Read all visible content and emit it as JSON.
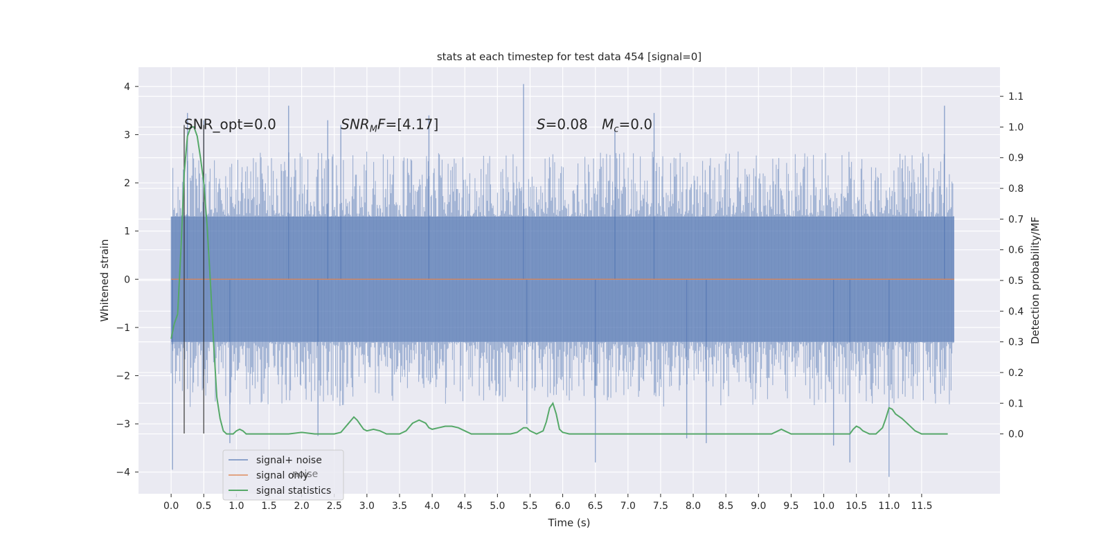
{
  "chart_data": {
    "type": "line",
    "title": "stats at each timestep for test data 454 [signal=0]",
    "xlabel": "Time (s)",
    "ylabel": "Whitened strain",
    "y2label": "Detection probability/MF",
    "xlim": [
      -0.5,
      12.7
    ],
    "ylim": [
      -4.45,
      4.4
    ],
    "y2lim": [
      -0.195,
      1.195
    ],
    "xticks": [
      "0.0",
      "0.5",
      "1.0",
      "1.5",
      "2.0",
      "2.5",
      "3.0",
      "3.5",
      "4.0",
      "4.5",
      "5.0",
      "5.5",
      "6.0",
      "6.5",
      "7.0",
      "7.5",
      "8.0",
      "8.5",
      "9.0",
      "9.5",
      "10.0",
      "10.5",
      "11.0",
      "11.5"
    ],
    "yticks": [
      "4",
      "3",
      "2",
      "1",
      "0",
      "−1",
      "−2",
      "−3",
      "−4"
    ],
    "y2ticks": [
      "1.1",
      "1.0",
      "0.9",
      "0.8",
      "0.7",
      "0.6",
      "0.5",
      "0.4",
      "0.3",
      "0.2",
      "0.1",
      "0.0"
    ],
    "grid": true,
    "legend_position": "lower-left",
    "background": "#eaeaf2",
    "colors": {
      "noise": "#4c72b0",
      "signal": "#dd8452",
      "stats": "#55a868",
      "vline": "#333333"
    },
    "series": [
      {
        "name": "signal+ noise",
        "x_range": [
          0.0,
          12.0
        ],
        "band_upper": 1.3,
        "band_lower": -1.3,
        "spikes": [
          {
            "x": 0.02,
            "y": -3.95
          },
          {
            "x": 0.25,
            "y": 3.45
          },
          {
            "x": 0.5,
            "y": 3.3
          },
          {
            "x": 0.9,
            "y": -3.4
          },
          {
            "x": 1.8,
            "y": 3.6
          },
          {
            "x": 2.25,
            "y": -3.25
          },
          {
            "x": 2.4,
            "y": 3.3
          },
          {
            "x": 2.6,
            "y": 3.2
          },
          {
            "x": 3.95,
            "y": 3.4
          },
          {
            "x": 5.4,
            "y": 4.05
          },
          {
            "x": 5.45,
            "y": -3.0
          },
          {
            "x": 6.5,
            "y": -3.8
          },
          {
            "x": 6.8,
            "y": 3.1
          },
          {
            "x": 7.4,
            "y": 3.45
          },
          {
            "x": 7.9,
            "y": -3.3
          },
          {
            "x": 8.2,
            "y": -3.4
          },
          {
            "x": 10.15,
            "y": -3.45
          },
          {
            "x": 10.4,
            "y": -3.8
          },
          {
            "x": 11.0,
            "y": -4.1
          },
          {
            "x": 11.85,
            "y": 3.6
          }
        ]
      },
      {
        "name": "signal only",
        "x": [
          0.0,
          12.0
        ],
        "y": [
          0.0,
          0.0
        ]
      },
      {
        "name": "signal statistics",
        "axis": "right",
        "x": [
          0.0,
          0.05,
          0.1,
          0.15,
          0.2,
          0.25,
          0.3,
          0.35,
          0.4,
          0.45,
          0.5,
          0.55,
          0.6,
          0.65,
          0.7,
          0.75,
          0.8,
          0.85,
          0.9,
          0.95,
          1.0,
          1.05,
          1.1,
          1.15,
          1.2,
          1.3,
          1.5,
          1.8,
          2.0,
          2.2,
          2.5,
          2.6,
          2.7,
          2.8,
          2.85,
          2.9,
          2.95,
          3.0,
          3.1,
          3.2,
          3.3,
          3.4,
          3.5,
          3.6,
          3.7,
          3.8,
          3.9,
          3.95,
          4.0,
          4.1,
          4.2,
          4.3,
          4.4,
          4.5,
          4.6,
          4.7,
          4.8,
          4.9,
          5.0,
          5.1,
          5.2,
          5.3,
          5.4,
          5.45,
          5.5,
          5.6,
          5.7,
          5.75,
          5.8,
          5.85,
          5.9,
          5.95,
          6.0,
          6.1,
          6.2,
          6.3,
          6.5,
          7.0,
          7.5,
          8.0,
          8.5,
          9.0,
          9.2,
          9.3,
          9.35,
          9.4,
          9.5,
          9.7,
          10.0,
          10.3,
          10.4,
          10.45,
          10.5,
          10.55,
          10.6,
          10.7,
          10.8,
          10.9,
          10.95,
          11.0,
          11.05,
          11.1,
          11.2,
          11.3,
          11.4,
          11.5,
          11.6,
          11.8,
          11.9
        ],
        "y": [
          0.31,
          0.36,
          0.39,
          0.6,
          0.85,
          0.97,
          1.0,
          1.0,
          0.97,
          0.9,
          0.82,
          0.68,
          0.5,
          0.3,
          0.12,
          0.05,
          0.01,
          0.0,
          0.0,
          0.0,
          0.01,
          0.015,
          0.01,
          0.0,
          0.0,
          0.0,
          0.0,
          0.0,
          0.005,
          0.0,
          0.0,
          0.005,
          0.03,
          0.055,
          0.045,
          0.03,
          0.015,
          0.01,
          0.015,
          0.01,
          0.0,
          0.0,
          0.0,
          0.01,
          0.035,
          0.045,
          0.035,
          0.02,
          0.015,
          0.02,
          0.025,
          0.025,
          0.02,
          0.01,
          0.0,
          0.0,
          0.0,
          0.0,
          0.0,
          0.0,
          0.0,
          0.005,
          0.02,
          0.02,
          0.01,
          0.0,
          0.01,
          0.04,
          0.085,
          0.1,
          0.065,
          0.015,
          0.005,
          0.0,
          0.0,
          0.0,
          0.0,
          0.0,
          0.0,
          0.0,
          0.0,
          0.0,
          0.0,
          0.01,
          0.015,
          0.01,
          0.0,
          0.0,
          0.0,
          0.0,
          0.0,
          0.015,
          0.025,
          0.02,
          0.01,
          0.0,
          0.0,
          0.02,
          0.05,
          0.085,
          0.08,
          0.065,
          0.05,
          0.03,
          0.01,
          0.0,
          0.0,
          0.0,
          0.0
        ]
      }
    ],
    "vlines": [
      0.2,
      0.5
    ],
    "annotations": [
      {
        "text": "SNR_opt=0.0",
        "x": 0.2,
        "y": 3.2
      },
      {
        "text": "SNR",
        "sub": "M",
        "after": "F=[4.17]",
        "x": 2.6,
        "y": 3.2
      },
      {
        "text": "S=0.08",
        "x": 5.6,
        "y": 3.2
      },
      {
        "text": "M",
        "sub": "c",
        "after": "=0.0",
        "x": 6.6,
        "y": 3.2
      }
    ],
    "legend_ghost_text": "noise"
  }
}
